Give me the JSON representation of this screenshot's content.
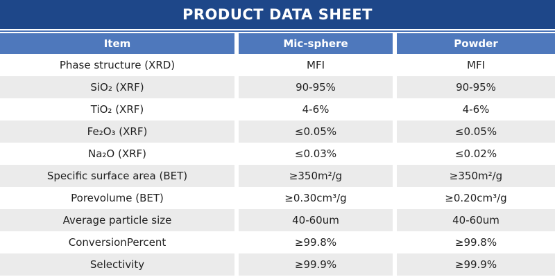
{
  "banner": {
    "title": "PRODUCT DATA SHEET"
  },
  "colors": {
    "banner_bg": "#1E4789",
    "header_bg": "#4E78BC",
    "accent_line": "#4A74B8",
    "stripe_bg": "#EBEBEB",
    "header_text": "#FFFFFF",
    "body_text": "#1F1F1F"
  },
  "table": {
    "columns": [
      "Item",
      "Mic-sphere",
      "Powder"
    ],
    "rows": [
      {
        "item": "Phase structure (XRD)",
        "mic_sphere": "MFI",
        "powder": "MFI"
      },
      {
        "item": "SiO₂ (XRF)",
        "mic_sphere": "90-95%",
        "powder": "90-95%"
      },
      {
        "item": "TiO₂ (XRF)",
        "mic_sphere": "4-6%",
        "powder": "4-6%"
      },
      {
        "item": "Fe₂O₃ (XRF)",
        "mic_sphere": "≤0.05%",
        "powder": "≤0.05%"
      },
      {
        "item": "Na₂O (XRF)",
        "mic_sphere": "≤0.03%",
        "powder": "≤0.02%"
      },
      {
        "item": "Specific surface area (BET)",
        "mic_sphere": "≥350m²/g",
        "powder": "≥350m²/g"
      },
      {
        "item": "Porevolume (BET)",
        "mic_sphere": "≥0.30cm³/g",
        "powder": "≥0.20cm³/g"
      },
      {
        "item": "Average particle size",
        "mic_sphere": "40-60um",
        "powder": "40-60um"
      },
      {
        "item": "ConversionPercent",
        "mic_sphere": "≥99.8%",
        "powder": "≥99.8%"
      },
      {
        "item": "Selectivity",
        "mic_sphere": "≥99.9%",
        "powder": "≥99.9%"
      }
    ]
  }
}
